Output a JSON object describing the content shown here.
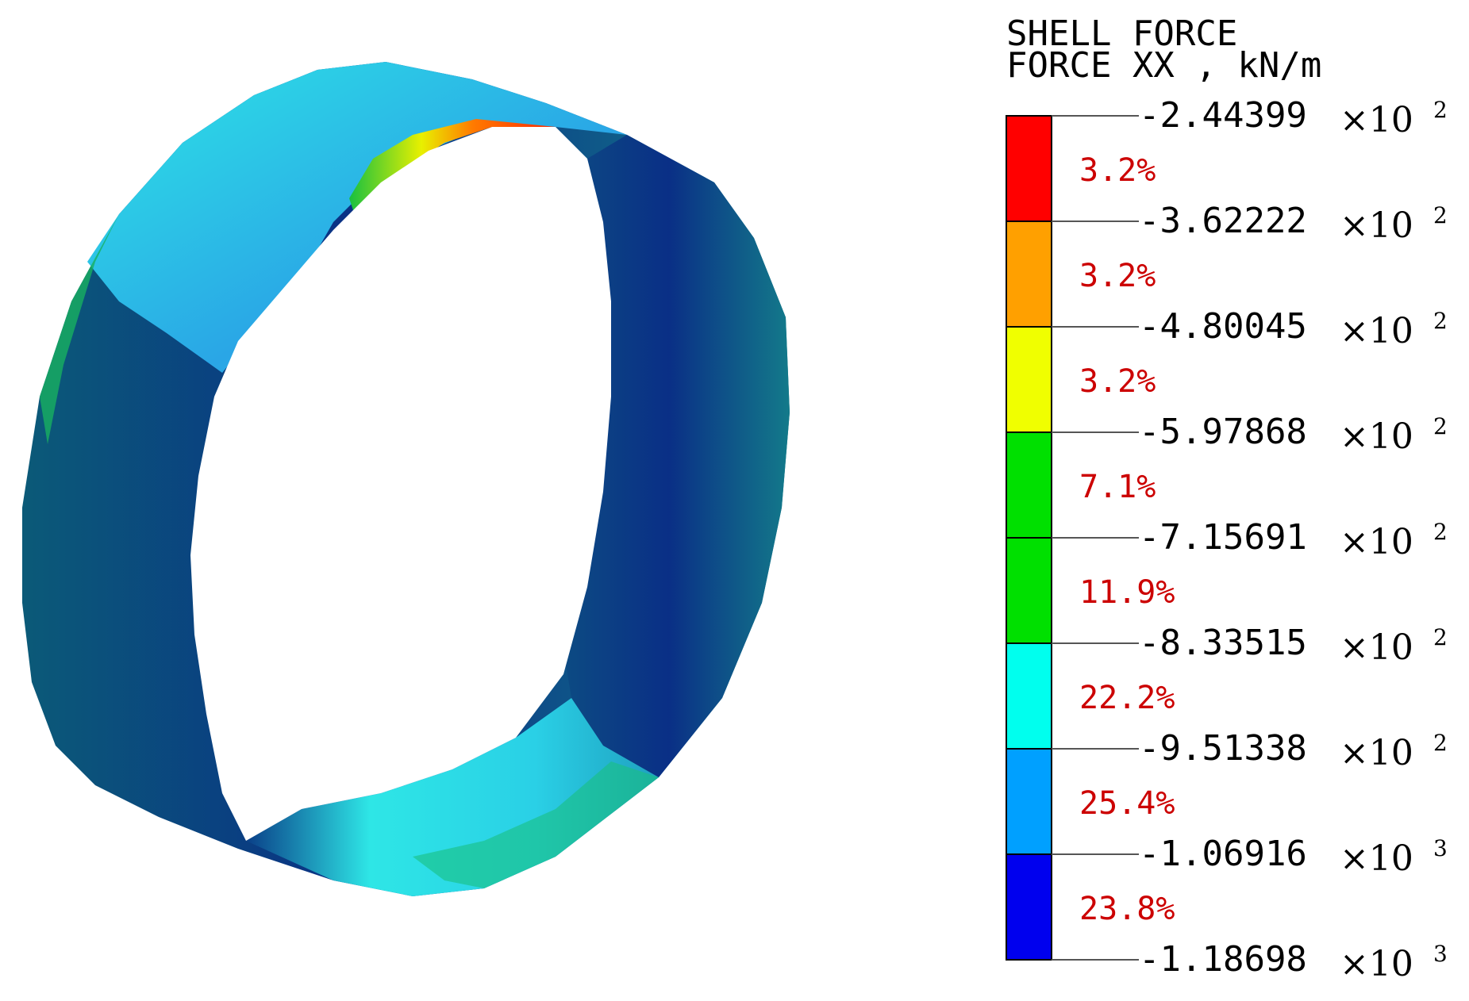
{
  "legend": {
    "title_line1": "SHELL FORCE",
    "title_line2": "FORCE XX , kN/m",
    "bands": [
      {
        "color": "#ff0000",
        "percent": "3.2%"
      },
      {
        "color": "#ffa000",
        "percent": "3.2%"
      },
      {
        "color": "#f0ff00",
        "percent": "3.2%"
      },
      {
        "color": "#00e000",
        "percent": "7.1%"
      },
      {
        "color": "#00e000",
        "percent": "11.9%"
      },
      {
        "color": "#00ffee",
        "percent": "22.2%"
      },
      {
        "color": "#00a0ff",
        "percent": "25.4%"
      },
      {
        "color": "#0000ee",
        "percent": "23.8%"
      }
    ],
    "ticks": [
      {
        "mantissa": "-2.44399",
        "times": "×10",
        "exp": "2"
      },
      {
        "mantissa": "-3.62222",
        "times": "×10",
        "exp": "2"
      },
      {
        "mantissa": "-4.80045",
        "times": "×10",
        "exp": "2"
      },
      {
        "mantissa": "-5.97868",
        "times": "×10",
        "exp": "2"
      },
      {
        "mantissa": "-7.15691",
        "times": "×10",
        "exp": "2"
      },
      {
        "mantissa": "-8.33515",
        "times": "×10",
        "exp": "2"
      },
      {
        "mantissa": "-9.51338",
        "times": "×10",
        "exp": "2"
      },
      {
        "mantissa": "-1.06916",
        "times": "×10",
        "exp": "3"
      },
      {
        "mantissa": "-1.18698",
        "times": "×10",
        "exp": "3"
      }
    ],
    "percent_color": "#cc0000"
  },
  "ring": {
    "colors": {
      "dark_blue": "#0a2f86",
      "teal_dark": "#0b5a78",
      "teal": "#137a8a",
      "cyan": "#2ee6e6",
      "light_cyan": "#40f0f0",
      "sky": "#2aa6e6",
      "green": "#18c040",
      "orange": "#ff7a00",
      "red": "#ff2a00"
    }
  }
}
